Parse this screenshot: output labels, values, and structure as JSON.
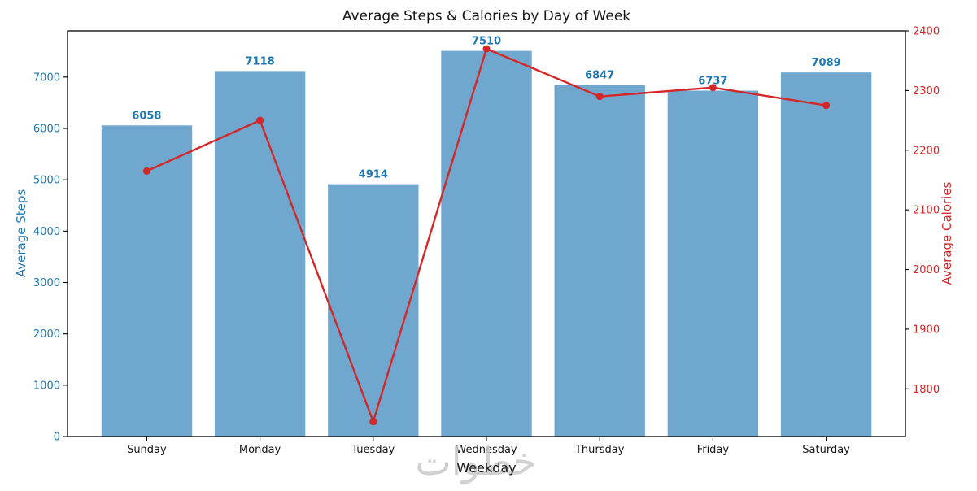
{
  "watermark": "خطوات",
  "chart_data": {
    "type": "bar",
    "title": "Average Steps & Calories by Day of Week",
    "categories": [
      "Sunday",
      "Monday",
      "Tuesday",
      "Wednesday",
      "Thursday",
      "Friday",
      "Saturday"
    ],
    "series": [
      {
        "name": "Average Steps",
        "kind": "bar",
        "axis": "left",
        "values": [
          6058,
          7118,
          4914,
          7510,
          6847,
          6737,
          7089
        ],
        "bar_color": "#6fa7cf",
        "label_color": "#1f77b4"
      },
      {
        "name": "Average Calories",
        "kind": "line",
        "axis": "right",
        "values": [
          2165,
          2250,
          1745,
          2370,
          2290,
          2305,
          2275
        ],
        "color": "#d62728"
      }
    ],
    "xlabel": "Weekday",
    "ylabels": {
      "left": "Average Steps",
      "right": "Average Calories"
    },
    "axis_colors": {
      "left": "#1f77b4",
      "right": "#d62728"
    },
    "ylim_left": [
      0,
      7900
    ],
    "yticks_left": [
      0,
      1000,
      2000,
      3000,
      4000,
      5000,
      6000,
      7000
    ],
    "ylim_right": [
      1720,
      2400
    ],
    "yticks_right": [
      1800,
      1900,
      2000,
      2100,
      2200,
      2300,
      2400
    ],
    "grid": false,
    "legend": "none",
    "bar_value_labels_shown": true
  }
}
